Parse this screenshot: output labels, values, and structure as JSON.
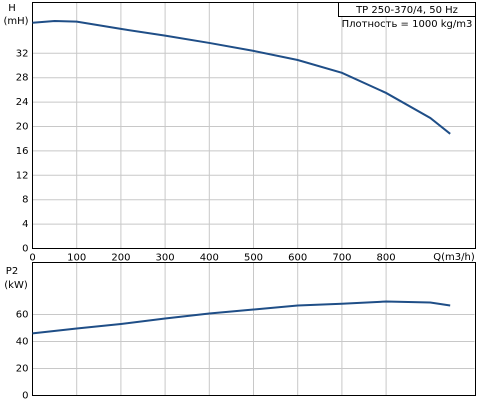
{
  "chart_data": [
    {
      "type": "line",
      "y_label": "H",
      "y_unit": "(mH)",
      "x_label": "Q(m3/h)",
      "legend_title": "TP 250-370/4, 50 Hz",
      "note": "Плотность = 1000 kg/m3",
      "x": [
        0,
        50,
        100,
        200,
        300,
        400,
        500,
        600,
        700,
        800,
        900,
        945
      ],
      "series": [
        {
          "name": "H",
          "color": "#1f4e87",
          "values": [
            37.0,
            37.3,
            37.2,
            36.0,
            34.9,
            33.7,
            32.4,
            30.9,
            28.8,
            25.5,
            21.4,
            18.8
          ]
        }
      ],
      "xlim": [
        0,
        1000
      ],
      "xticks": [
        0,
        100,
        200,
        300,
        400,
        500,
        600,
        700,
        800
      ],
      "ylim": [
        0,
        40
      ],
      "yticks": [
        0,
        4,
        8,
        12,
        16,
        20,
        24,
        28,
        32
      ],
      "grid": true
    },
    {
      "type": "line",
      "y_label": "P2",
      "y_unit": "(kW)",
      "x": [
        0,
        100,
        200,
        300,
        400,
        500,
        600,
        700,
        800,
        900,
        945
      ],
      "series": [
        {
          "name": "P2",
          "color": "#1f4e87",
          "values": [
            46,
            49.6,
            53,
            57,
            60.7,
            63.7,
            66.7,
            68,
            69.6,
            68.9,
            66.7
          ]
        }
      ],
      "xlim": [
        0,
        1000
      ],
      "ylim": [
        0,
        100
      ],
      "yticks": [
        0,
        20,
        40,
        60
      ],
      "grid": true
    }
  ]
}
